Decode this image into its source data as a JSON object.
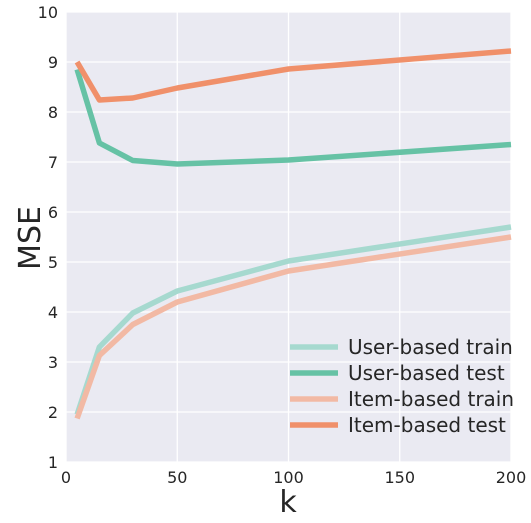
{
  "chart_data": {
    "type": "line",
    "xlabel": "k",
    "ylabel": "MSE",
    "xlim": [
      0,
      200
    ],
    "ylim": [
      1,
      10
    ],
    "x_ticks": [
      0,
      50,
      100,
      150,
      200
    ],
    "y_ticks": [
      1,
      2,
      3,
      4,
      5,
      6,
      7,
      8,
      9,
      10
    ],
    "grid": true,
    "legend_position": "bottom-right",
    "x": [
      5,
      15,
      30,
      50,
      100,
      200
    ],
    "series": [
      {
        "name": "User-based train",
        "color": "#a6d9cf",
        "values": [
          1.95,
          3.3,
          3.98,
          4.42,
          5.02,
          5.7
        ]
      },
      {
        "name": "User-based test",
        "color": "#66c2a5",
        "values": [
          8.85,
          7.38,
          7.03,
          6.96,
          7.04,
          7.35
        ]
      },
      {
        "name": "Item-based train",
        "color": "#f2b9a4",
        "values": [
          1.87,
          3.13,
          3.75,
          4.2,
          4.82,
          5.5
        ]
      },
      {
        "name": "Item-based test",
        "color": "#f0906a",
        "values": [
          9.0,
          8.24,
          8.28,
          8.48,
          8.86,
          9.22
        ]
      }
    ]
  }
}
